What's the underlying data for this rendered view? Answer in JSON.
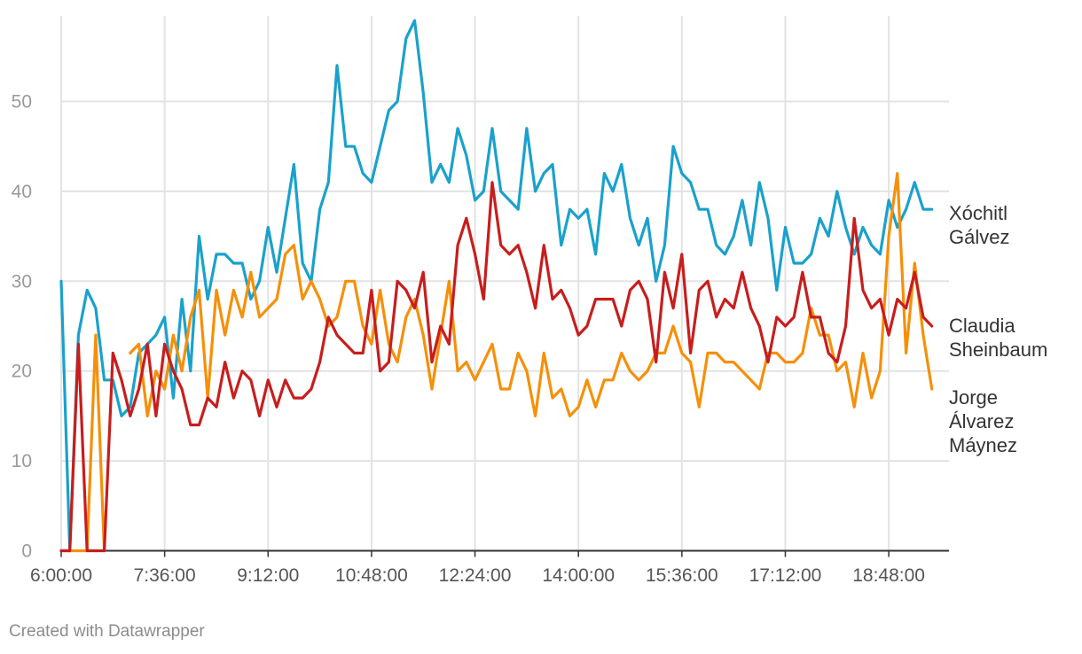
{
  "footer": {
    "credit": "Created with Datawrapper"
  },
  "chart_data": {
    "type": "line",
    "title": "",
    "xlabel": "",
    "ylabel": "",
    "ylim": [
      0,
      59
    ],
    "yticks": [
      0,
      10,
      20,
      30,
      40,
      50
    ],
    "xtick_labels": [
      "6:00:00",
      "7:36:00",
      "9:12:00",
      "10:48:00",
      "12:24:00",
      "14:00:00",
      "15:36:00",
      "17:12:00",
      "18:48:00"
    ],
    "xtick_index": [
      0,
      12,
      24,
      36,
      48,
      60,
      72,
      84,
      96
    ],
    "grid": true,
    "legend": "labels at line ends (right)",
    "x_step": "8 minutes per point, from 6:00:00",
    "series": [
      {
        "name": "Xóchitl Gálvez",
        "color": "#1aa1cc",
        "label_lines": [
          "Xóchitl",
          "Gálvez"
        ],
        "values": [
          30,
          0,
          24,
          29,
          27,
          19,
          19,
          15,
          16,
          22,
          23,
          24,
          26,
          17,
          28,
          20,
          35,
          28,
          33,
          33,
          32,
          32,
          28,
          30,
          36,
          31,
          37,
          43,
          32,
          30,
          38,
          41,
          54,
          45,
          45,
          42,
          41,
          45,
          49,
          50,
          57,
          59,
          51,
          41,
          43,
          41,
          47,
          44,
          39,
          40,
          47,
          40,
          39,
          38,
          47,
          40,
          42,
          43,
          34,
          38,
          37,
          38,
          33,
          42,
          40,
          43,
          37,
          34,
          37,
          30,
          34,
          45,
          42,
          41,
          38,
          38,
          34,
          33,
          35,
          39,
          34,
          41,
          37,
          29,
          36,
          32,
          32,
          33,
          37,
          35,
          40,
          36,
          33,
          36,
          34,
          33,
          39,
          36,
          38,
          41,
          38,
          38
        ]
      },
      {
        "name": "Claudia Sheinbaum",
        "color": "#c71e1d",
        "label_lines": [
          "Claudia",
          "Sheinbaum"
        ],
        "values": [
          0,
          0,
          23,
          0,
          0,
          0,
          22,
          19,
          15,
          18,
          23,
          15,
          23,
          20,
          18,
          14,
          14,
          17,
          16,
          21,
          17,
          20,
          19,
          15,
          19,
          16,
          19,
          17,
          17,
          18,
          21,
          26,
          24,
          23,
          22,
          22,
          29,
          20,
          21,
          30,
          29,
          27,
          31,
          21,
          25,
          23,
          34,
          37,
          33,
          28,
          41,
          34,
          33,
          34,
          31,
          27,
          34,
          28,
          29,
          27,
          24,
          25,
          28,
          28,
          28,
          25,
          29,
          30,
          28,
          21,
          31,
          27,
          33,
          22,
          29,
          30,
          26,
          28,
          27,
          31,
          27,
          25,
          21,
          26,
          25,
          26,
          31,
          26,
          26,
          22,
          21,
          25,
          37,
          29,
          27,
          28,
          24,
          28,
          27,
          31,
          26,
          25
        ]
      },
      {
        "name": "Jorge Álvarez Máynez",
        "color": "#f5900a",
        "label_lines": [
          "Jorge",
          "Álvarez",
          "Máynez"
        ],
        "values": [
          0,
          0,
          0,
          0,
          24,
          0,
          null,
          null,
          22,
          23,
          15,
          20,
          18,
          24,
          20,
          26,
          29,
          17,
          29,
          24,
          29,
          26,
          31,
          26,
          27,
          28,
          33,
          34,
          28,
          30,
          28,
          25,
          26,
          30,
          30,
          25,
          23,
          29,
          23,
          21,
          26,
          28,
          24,
          18,
          24,
          30,
          20,
          21,
          19,
          21,
          23,
          18,
          18,
          22,
          20,
          15,
          22,
          17,
          18,
          15,
          16,
          19,
          16,
          19,
          19,
          22,
          20,
          19,
          20,
          22,
          22,
          25,
          22,
          21,
          16,
          22,
          22,
          21,
          21,
          20,
          19,
          18,
          22,
          22,
          21,
          21,
          22,
          27,
          24,
          24,
          20,
          21,
          16,
          22,
          17,
          20,
          35,
          42,
          22,
          32,
          24,
          18
        ]
      }
    ]
  }
}
